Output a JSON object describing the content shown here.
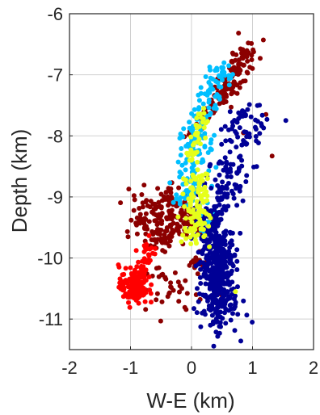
{
  "chart_data": {
    "type": "scatter",
    "xlabel": "W-E (km)",
    "ylabel": "Depth (km)",
    "xlim": [
      -2,
      2
    ],
    "ylim": [
      -11.5,
      -6
    ],
    "xticks": [
      -2,
      -1,
      0,
      1,
      2
    ],
    "xtick_labels": [
      "-2",
      "-1",
      "0",
      "1",
      "2"
    ],
    "yticks": [
      -11,
      -10,
      -9,
      -8,
      -7,
      -6
    ],
    "ytick_labels": [
      "-11",
      "-10",
      "-9",
      "-8",
      "-7",
      "-6"
    ],
    "grid": true,
    "legend": "none",
    "series": [
      {
        "color": "#8B0000",
        "clusters": [
          {
            "line": [
              [
                0.48,
                -7.4
              ],
              [
                1.0,
                -6.45
              ]
            ],
            "width": 0.12,
            "n": 110
          },
          {
            "line": [
              [
                0.0,
                -8.0
              ],
              [
                0.5,
                -7.3
              ]
            ],
            "width": 0.08,
            "n": 40
          },
          {
            "center": [
              -0.45,
              -9.3
            ],
            "spread": [
              0.3,
              0.22
            ],
            "n": 150
          },
          {
            "line": [
              [
                -0.6,
                -9.8
              ],
              [
                0.05,
                -9.3
              ]
            ],
            "width": 0.12,
            "n": 60
          },
          {
            "center": [
              -0.4,
              -10.5
            ],
            "spread": [
              0.3,
              0.25
            ],
            "n": 40
          },
          {
            "center": [
              0.1,
              -10.1
            ],
            "spread": [
              0.1,
              0.08
            ],
            "n": 15
          },
          {
            "points": [
              [
                1.32,
                -8.33
              ],
              [
                1.22,
                -7.65
              ],
              [
                0.85,
                -7.95
              ],
              [
                0.15,
                -7.7
              ]
            ]
          }
        ]
      },
      {
        "color": "#00BFFF",
        "clusters": [
          {
            "line": [
              [
                -0.05,
                -8.15
              ],
              [
                0.55,
                -6.85
              ]
            ],
            "width": 0.11,
            "n": 100
          },
          {
            "line": [
              [
                -0.05,
                -9.15
              ],
              [
                0.08,
                -8.05
              ]
            ],
            "width": 0.12,
            "n": 90
          },
          {
            "center": [
              0.25,
              -9.35
            ],
            "spread": [
              0.1,
              0.12
            ],
            "n": 20
          }
        ]
      },
      {
        "color": "#000096",
        "clusters": [
          {
            "center": [
              0.45,
              -10.15
            ],
            "spread": [
              0.14,
              0.32
            ],
            "n": 350
          },
          {
            "line": [
              [
                0.35,
                -9.3
              ],
              [
                1.0,
                -7.55
              ]
            ],
            "width": 0.17,
            "n": 150
          },
          {
            "center": [
              0.4,
              -10.85
            ],
            "spread": [
              0.18,
              0.2
            ],
            "n": 70
          },
          {
            "center": [
              0.3,
              -9.5
            ],
            "spread": [
              0.15,
              0.2
            ],
            "n": 60
          }
        ]
      },
      {
        "color": "#FF0000",
        "clusters": [
          {
            "center": [
              -0.95,
              -10.45
            ],
            "spread": [
              0.12,
              0.16
            ],
            "n": 120
          },
          {
            "line": [
              [
                -1.05,
                -10.7
              ],
              [
                -0.7,
                -10.05
              ]
            ],
            "width": 0.07,
            "n": 40
          },
          {
            "center": [
              -0.7,
              -9.85
            ],
            "spread": [
              0.06,
              0.15
            ],
            "n": 20
          }
        ]
      },
      {
        "color": "#E6FF1A",
        "clusters": [
          {
            "line": [
              [
                0.0,
                -8.45
              ],
              [
                0.2,
                -7.55
              ]
            ],
            "width": 0.06,
            "n": 40
          },
          {
            "line": [
              [
                0.05,
                -9.75
              ],
              [
                0.12,
                -8.6
              ]
            ],
            "width": 0.1,
            "n": 120
          },
          {
            "points": [
              [
                0.72,
                -10.55
              ],
              [
                0.0,
                -8.4
              ],
              [
                0.2,
                -7.55
              ]
            ]
          }
        ]
      }
    ]
  }
}
